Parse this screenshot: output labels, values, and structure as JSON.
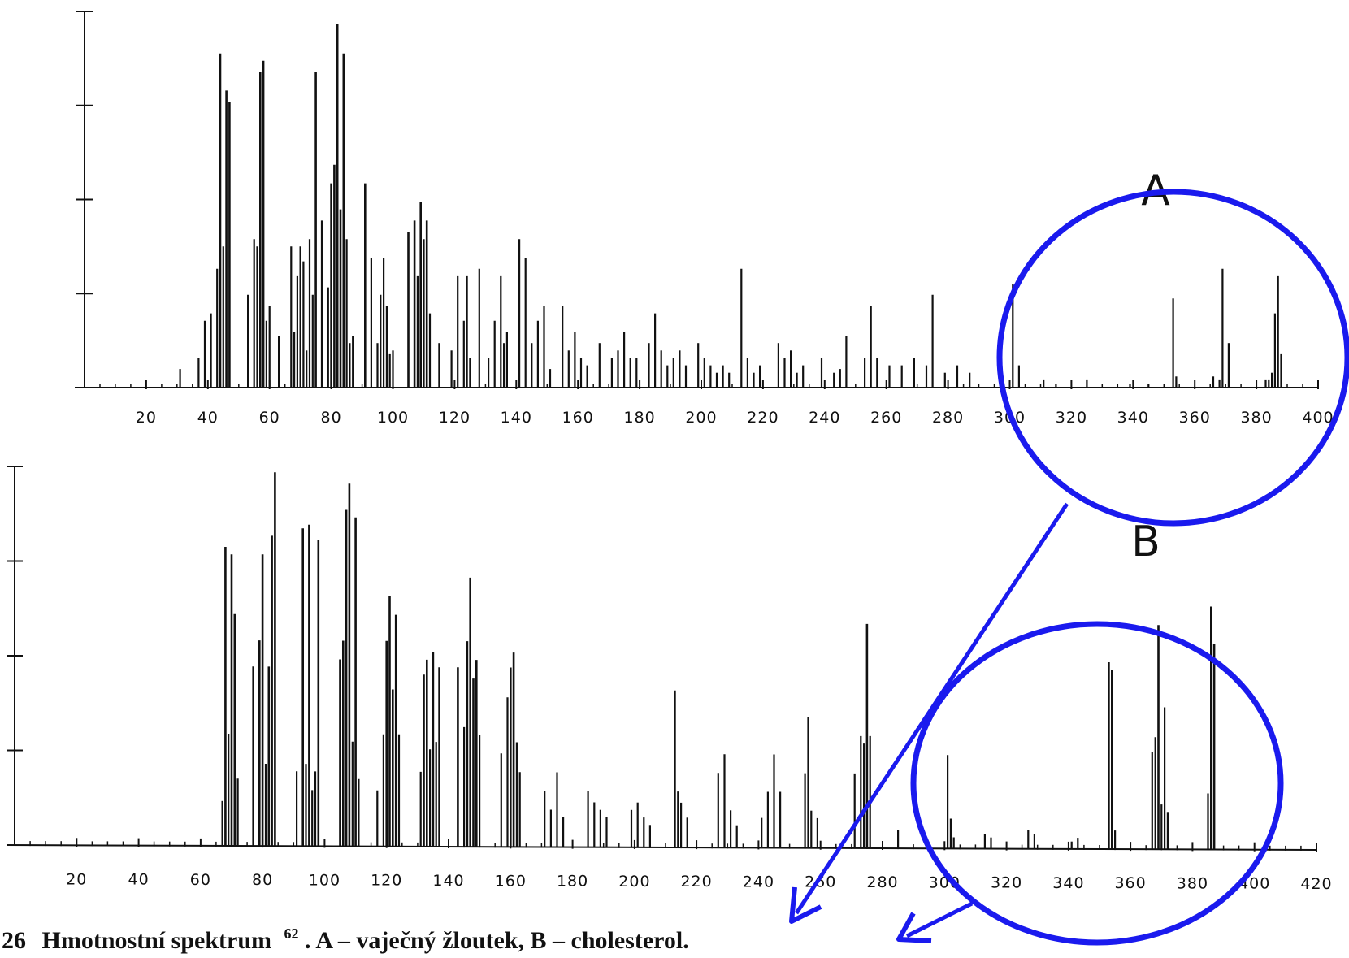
{
  "caption": {
    "number": "26",
    "text_before": "Hmotnostní spektrum",
    "ref": "62",
    "text_after": ". A – vaječný žloutek, B – cholesterol."
  },
  "colors": {
    "ink": "#111111",
    "annotation": "#1a1aee"
  },
  "chart_data": [
    {
      "type": "bar",
      "panel_label": "A",
      "xlim": [
        0,
        400
      ],
      "x_ticks": [
        20,
        40,
        60,
        80,
        100,
        120,
        140,
        160,
        180,
        200,
        220,
        240,
        260,
        280,
        300,
        320,
        340,
        360,
        380,
        400
      ],
      "ylim": [
        0,
        100
      ],
      "x": [
        31,
        37,
        39,
        41,
        43,
        44,
        45,
        46,
        47,
        53,
        55,
        56,
        57,
        58,
        59,
        60,
        63,
        67,
        68,
        69,
        70,
        71,
        72,
        73,
        74,
        75,
        77,
        79,
        80,
        81,
        82,
        83,
        84,
        85,
        86,
        87,
        91,
        93,
        95,
        96,
        97,
        98,
        99,
        100,
        105,
        107,
        108,
        109,
        110,
        111,
        112,
        115,
        119,
        121,
        123,
        124,
        125,
        128,
        131,
        133,
        135,
        136,
        137,
        141,
        143,
        145,
        147,
        149,
        151,
        155,
        157,
        159,
        161,
        163,
        167,
        171,
        173,
        175,
        177,
        179,
        183,
        185,
        187,
        189,
        191,
        193,
        195,
        199,
        201,
        203,
        205,
        207,
        209,
        213,
        215,
        217,
        219,
        225,
        227,
        229,
        231,
        233,
        239,
        243,
        245,
        247,
        253,
        255,
        257,
        261,
        265,
        269,
        273,
        275,
        279,
        283,
        287,
        301,
        303,
        311,
        315,
        325,
        339,
        345,
        353,
        354,
        366,
        368,
        369,
        371,
        383,
        384,
        385,
        386,
        387,
        388
      ],
      "values": [
        5,
        8,
        18,
        20,
        32,
        90,
        38,
        80,
        77,
        25,
        40,
        38,
        85,
        88,
        18,
        22,
        14,
        38,
        15,
        30,
        38,
        34,
        10,
        40,
        25,
        85,
        45,
        27,
        55,
        60,
        98,
        48,
        90,
        40,
        12,
        14,
        55,
        35,
        12,
        25,
        35,
        22,
        9,
        10,
        42,
        45,
        30,
        50,
        40,
        45,
        20,
        12,
        10,
        30,
        18,
        30,
        8,
        32,
        8,
        18,
        30,
        12,
        15,
        40,
        35,
        12,
        18,
        22,
        5,
        22,
        10,
        15,
        8,
        6,
        12,
        8,
        10,
        15,
        8,
        8,
        12,
        20,
        10,
        6,
        8,
        10,
        6,
        12,
        8,
        6,
        4,
        6,
        4,
        32,
        8,
        4,
        6,
        12,
        8,
        10,
        4,
        6,
        8,
        4,
        5,
        14,
        8,
        22,
        8,
        6,
        6,
        8,
        6,
        25,
        4,
        6,
        4,
        28,
        6,
        2,
        1,
        2,
        1,
        1,
        24,
        3,
        3,
        2,
        32,
        12,
        2,
        2,
        4,
        20,
        30,
        9
      ]
    },
    {
      "type": "bar",
      "panel_label": "B",
      "xlim": [
        0,
        420
      ],
      "x_ticks": [
        20,
        40,
        60,
        80,
        100,
        120,
        140,
        160,
        180,
        200,
        220,
        240,
        260,
        280,
        300,
        320,
        340,
        360,
        380,
        400,
        420
      ],
      "ylim": [
        0,
        100
      ],
      "x": [
        67,
        68,
        69,
        70,
        71,
        72,
        77,
        79,
        80,
        81,
        82,
        83,
        84,
        91,
        93,
        94,
        95,
        96,
        97,
        98,
        105,
        106,
        107,
        108,
        109,
        110,
        111,
        117,
        119,
        120,
        121,
        122,
        123,
        124,
        131,
        132,
        133,
        134,
        135,
        136,
        137,
        143,
        145,
        146,
        147,
        148,
        149,
        150,
        157,
        159,
        160,
        161,
        162,
        163,
        171,
        173,
        175,
        177,
        185,
        187,
        189,
        191,
        199,
        201,
        203,
        205,
        213,
        214,
        215,
        217,
        227,
        229,
        231,
        233,
        241,
        243,
        245,
        247,
        255,
        256,
        257,
        259,
        271,
        273,
        274,
        275,
        276,
        285,
        301,
        302,
        303,
        313,
        315,
        327,
        329,
        341,
        343,
        353,
        354,
        355,
        367,
        368,
        369,
        370,
        371,
        372,
        385,
        386,
        387
      ],
      "values": [
        12,
        80,
        30,
        78,
        62,
        18,
        48,
        55,
        78,
        22,
        48,
        83,
        100,
        20,
        85,
        22,
        86,
        15,
        20,
        82,
        50,
        55,
        90,
        97,
        28,
        88,
        18,
        15,
        30,
        55,
        67,
        42,
        62,
        30,
        20,
        46,
        50,
        26,
        52,
        28,
        48,
        48,
        32,
        55,
        72,
        45,
        50,
        30,
        25,
        40,
        48,
        52,
        28,
        20,
        15,
        10,
        20,
        8,
        15,
        12,
        10,
        8,
        10,
        12,
        8,
        6,
        42,
        15,
        12,
        8,
        20,
        25,
        10,
        6,
        8,
        15,
        25,
        15,
        20,
        35,
        10,
        8,
        20,
        30,
        28,
        60,
        30,
        5,
        25,
        8,
        3,
        4,
        3,
        5,
        4,
        2,
        3,
        50,
        48,
        5,
        26,
        30,
        60,
        12,
        38,
        10,
        15,
        65,
        55
      ]
    }
  ]
}
